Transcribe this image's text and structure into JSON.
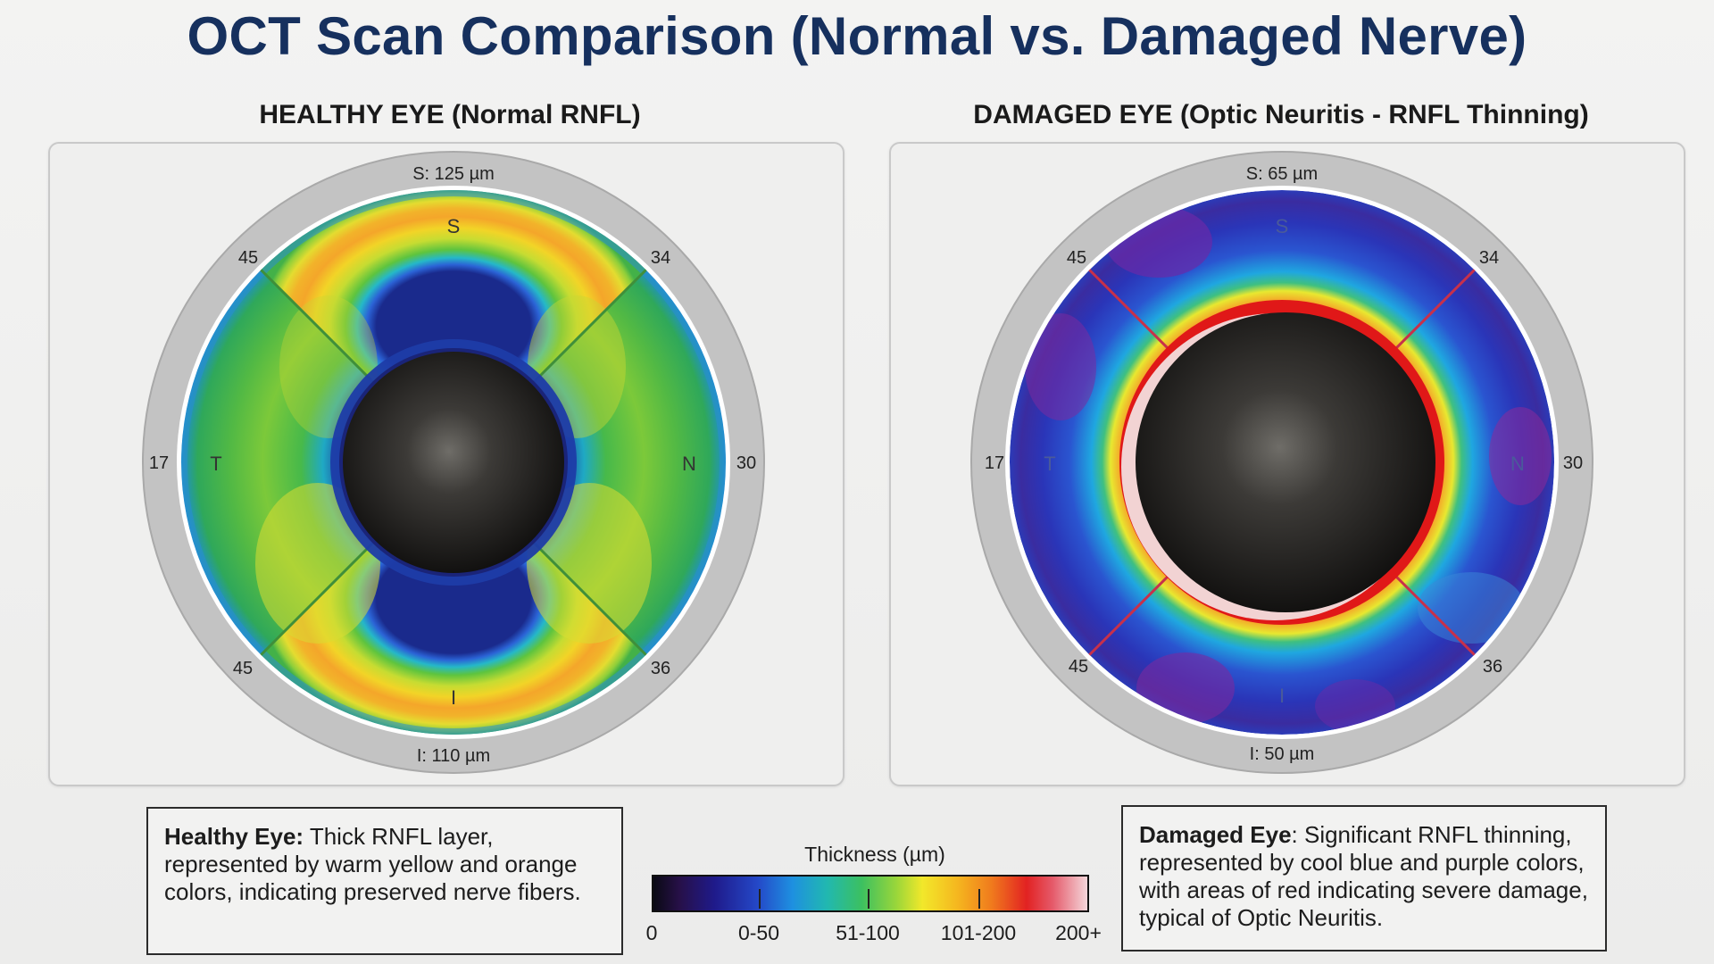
{
  "title": "OCT Scan Comparison (Normal vs. Damaged Nerve)",
  "colors": {
    "title": "#16305e",
    "healthy_warm": "#f5a623",
    "damaged_cool": "#2a3fc0",
    "sector_line_healthy": "#3f8f3a",
    "sector_line_damaged": "#c8304a"
  },
  "healthy": {
    "heading": "HEALTHY EYE (Normal RNFL)",
    "superior_value": "S: 125 µm",
    "inferior_value": "I: 110 µm",
    "label_s": "S",
    "label_i": "I",
    "label_t": "T",
    "label_n": "N",
    "val_upper_left": "45",
    "val_upper_right": "34",
    "val_left": "17",
    "val_right": "30",
    "val_lower_left": "45",
    "val_lower_right": "36",
    "description_bold": "Healthy Eye:",
    "description_text": " Thick RNFL layer, represented by warm yellow and orange colors, indicating preserved nerve fibers."
  },
  "damaged": {
    "heading": "DAMAGED EYE (Optic Neuritis - RNFL Thinning)",
    "superior_value": "S: 65 µm",
    "inferior_value": "I: 50 µm",
    "label_s": "S",
    "label_i": "I",
    "label_t": "T",
    "label_n": "N",
    "val_upper_left": "45",
    "val_upper_right": "34",
    "val_left": "17",
    "val_right": "30",
    "val_lower_left": "45",
    "val_lower_right": "36",
    "description_bold": "Damaged Eye",
    "description_text": ": Significant RNFL thinning, represented by cool blue and purple colors, with areas of red indicating severe damage, typical of Optic Neuritis."
  },
  "legend": {
    "title": "Thickness (µm)",
    "labels": [
      "0",
      "0-50",
      "51-100",
      "101-200",
      "200+"
    ]
  }
}
